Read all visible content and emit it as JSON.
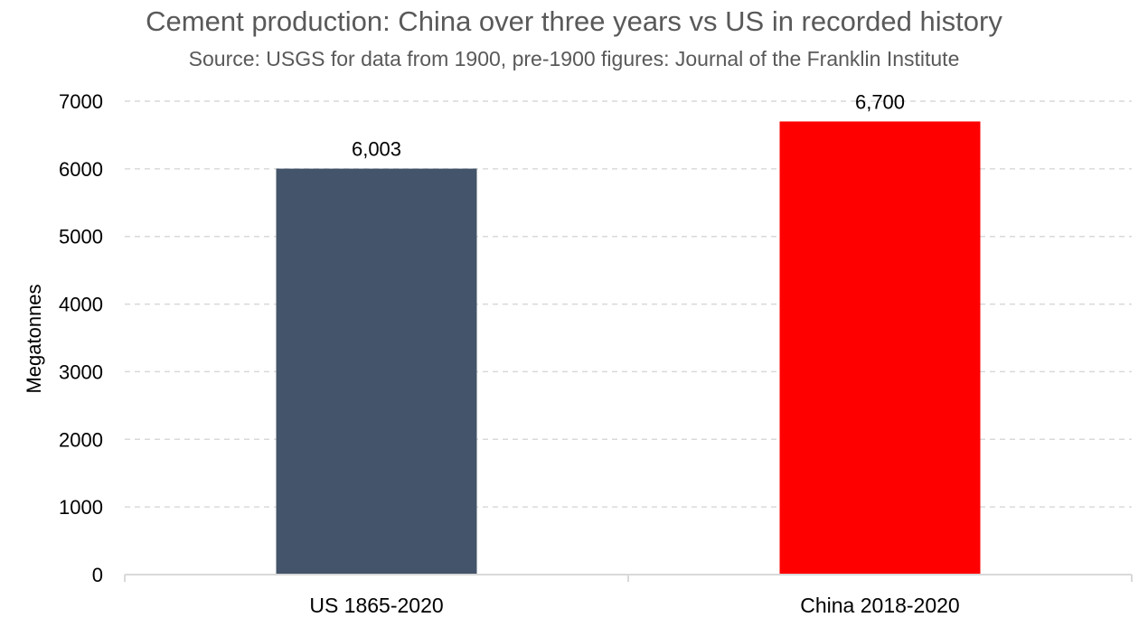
{
  "chart_data": {
    "type": "bar",
    "title": "Cement production: China over three years vs US in recorded history",
    "subtitle": "Source: USGS for data from 1900, pre-1900 figures: Journal of the Franklin Institute",
    "xlabel": "",
    "ylabel": "Megatonnes",
    "categories": [
      "US 1865-2020",
      "China 2018-2020"
    ],
    "values": [
      6003,
      6700
    ],
    "data_labels": [
      "6,003",
      "6,700"
    ],
    "bar_colors": [
      "#44546a",
      "#ff0000"
    ],
    "ylim": [
      0,
      7000
    ],
    "yticks": [
      0,
      1000,
      2000,
      3000,
      4000,
      5000,
      6000,
      7000
    ],
    "ytick_labels": [
      "0",
      "1000",
      "2000",
      "3000",
      "4000",
      "5000",
      "6000",
      "7000"
    ],
    "grid": true,
    "grid_style": "dashed",
    "legend": "none"
  }
}
